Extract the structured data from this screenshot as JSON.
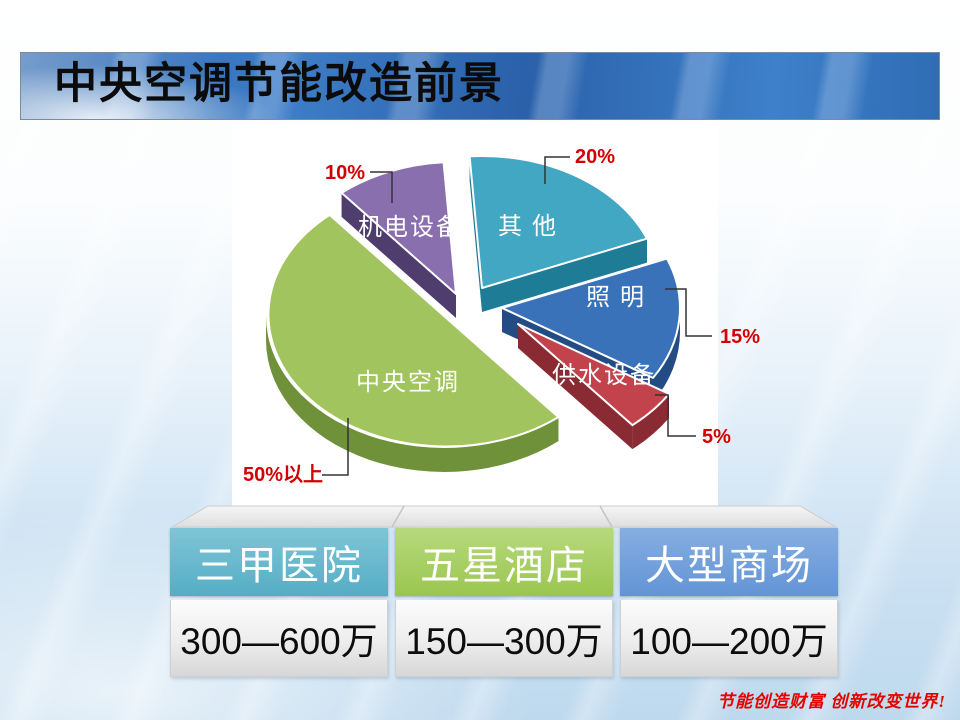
{
  "slide": {
    "title": "中央空调节能改造前景",
    "footer": "节能创造财富 创新改变世界!"
  },
  "chart_data": [
    {
      "type": "pie",
      "title": "",
      "legend_position": "on-slice-labels",
      "slices": [
        {
          "label": "其 他",
          "pct_label": "20%",
          "value": 20,
          "color_top": "#42a7c2",
          "color_side": "#1f7c96"
        },
        {
          "label": "照 明",
          "pct_label": "15%",
          "value": 15,
          "color_top": "#3a72b9",
          "color_side": "#234c85"
        },
        {
          "label": "供水设备",
          "pct_label": "5%",
          "value": 5,
          "color_top": "#c2434c",
          "color_side": "#8a2b33"
        },
        {
          "label": "中央空调",
          "pct_label": "50%以上",
          "value": 50,
          "color_top": "#a2c45f",
          "color_side": "#6f9139"
        },
        {
          "label": "机电设备",
          "pct_label": "10%",
          "value": 10,
          "color_top": "#8a6fae",
          "color_side": "#4f3d6e"
        }
      ],
      "pct_label_color": "#d40000"
    },
    {
      "type": "table",
      "columns": [
        {
          "header": "三甲医院",
          "value": "300—600万",
          "header_color_top": "#7fc5d6",
          "header_color_bottom": "#55adc5"
        },
        {
          "header": "五星酒店",
          "value": "150—300万",
          "header_color_top": "#b7d97d",
          "header_color_bottom": "#9ac64f"
        },
        {
          "header": "大型商场",
          "value": "100—200万",
          "header_color_top": "#86aee1",
          "header_color_bottom": "#6394d5"
        }
      ]
    }
  ]
}
